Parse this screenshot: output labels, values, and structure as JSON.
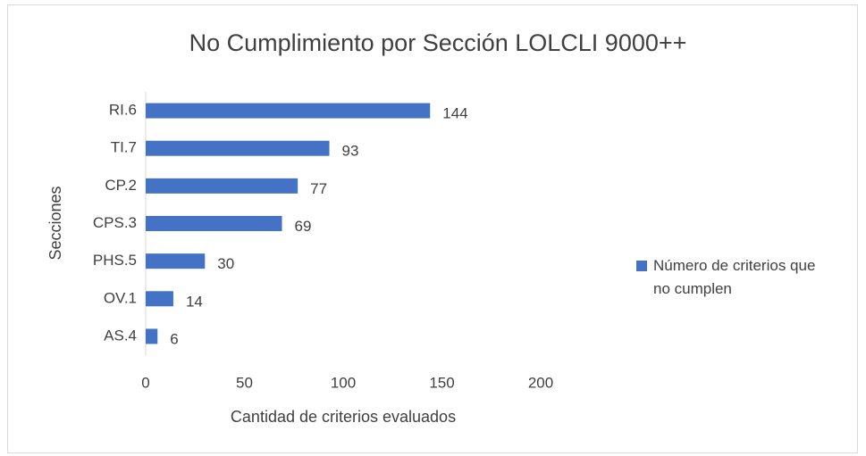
{
  "chart_data": {
    "type": "bar",
    "orientation": "horizontal",
    "title": "No Cumplimiento por Sección LOLCLI 9000++",
    "x_label": "Cantidad de criterios evaluados",
    "y_label": "Secciones",
    "categories": [
      "RI.6",
      "TI.7",
      "CP.2",
      "CPS.3",
      "PHS.5",
      "OV.1",
      "AS.4"
    ],
    "series": [
      {
        "name": "Número de criterios que no cumplen",
        "color": "#4472c4",
        "values": [
          144,
          93,
          77,
          69,
          30,
          14,
          6
        ]
      }
    ],
    "xlim": [
      0,
      200
    ],
    "xticks": [
      0,
      50,
      100,
      150,
      200
    ],
    "legend": "right",
    "grid": false
  }
}
